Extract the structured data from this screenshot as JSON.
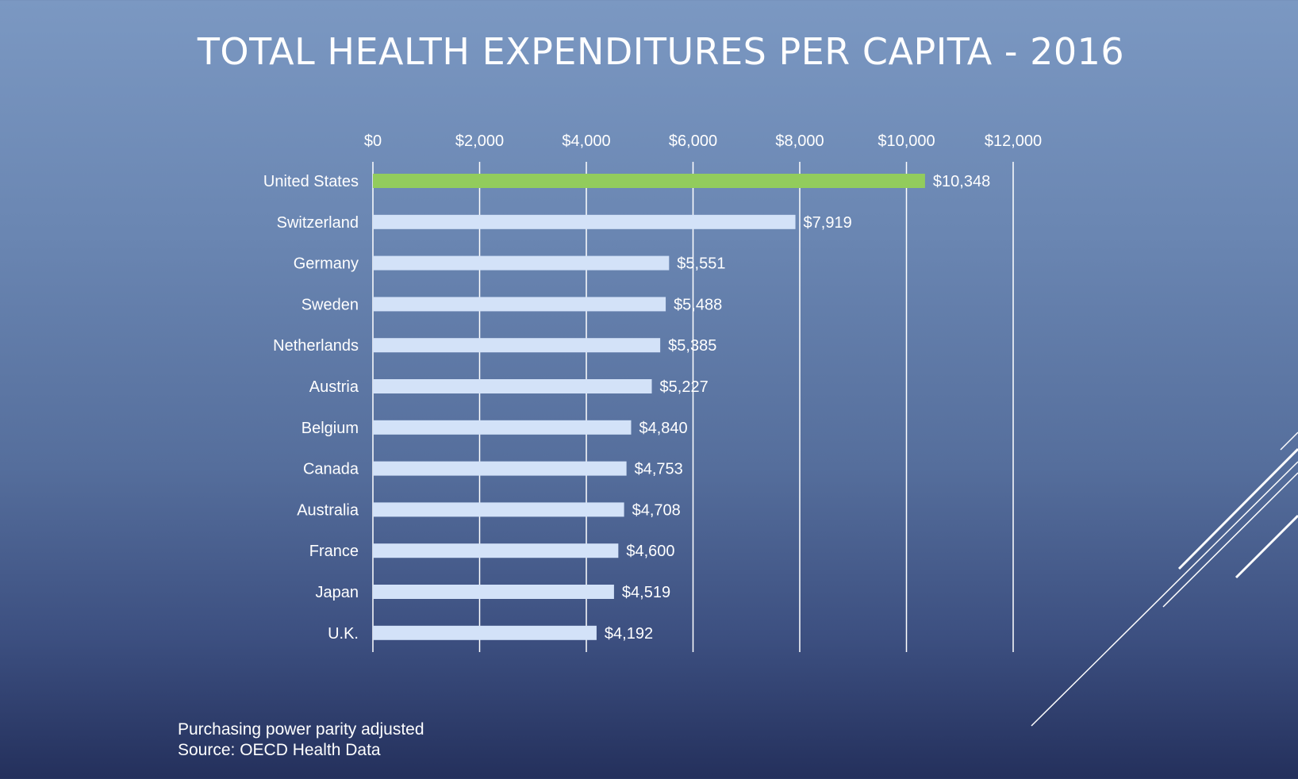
{
  "chart_data": {
    "type": "bar",
    "orientation": "horizontal",
    "title": "TOTAL HEALTH EXPENDITURES PER CAPITA - 2016",
    "categories": [
      "United States",
      "Switzerland",
      "Germany",
      "Sweden",
      "Netherlands",
      "Austria",
      "Belgium",
      "Canada",
      "Australia",
      "France",
      "Japan",
      "U.K."
    ],
    "values": [
      10348,
      7919,
      5551,
      5488,
      5385,
      5227,
      4840,
      4753,
      4708,
      4600,
      4519,
      4192
    ],
    "data_labels": [
      "$10,348",
      "$7,919",
      "$5,551",
      "$5,488",
      "$5,385",
      "$5,227",
      "$4,840",
      "$4,753",
      "$4,708",
      "$4,600",
      "$4,519",
      "$4,192"
    ],
    "xlim": [
      0,
      12000
    ],
    "ticks": [
      0,
      2000,
      4000,
      6000,
      8000,
      10000,
      12000
    ],
    "tick_labels": [
      "$0",
      "$2,000",
      "$4,000",
      "$6,000",
      "$8,000",
      "$10,000",
      "$12,000"
    ],
    "axis_position": "top",
    "grid": true,
    "legend": "none",
    "colors": {
      "highlight": "#92cc5c",
      "default": "#d3e2f8",
      "grid": "#ffffff"
    },
    "highlight_index": 0
  },
  "notes": {
    "line1": "Purchasing power parity adjusted",
    "line2": "Source: OECD Health Data"
  }
}
